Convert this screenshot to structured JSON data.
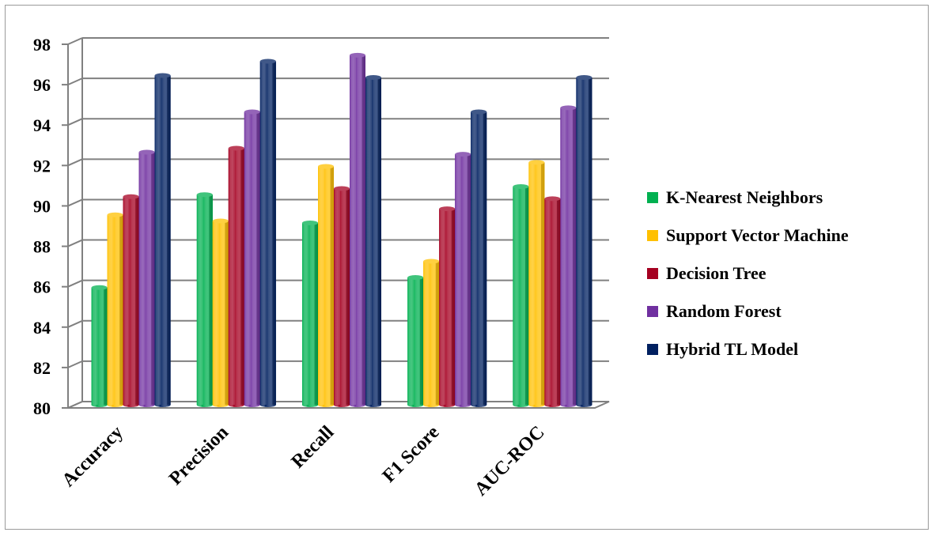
{
  "chart_data": {
    "type": "bar",
    "categories": [
      "Accuracy",
      "Precision",
      "Recall",
      "F1 Score",
      "AUC-ROC"
    ],
    "series": [
      {
        "name": "K-Nearest Neighbors",
        "values": [
          85.8,
          90.4,
          89.0,
          86.3,
          90.8
        ],
        "color": "#00b050"
      },
      {
        "name": "Support Vector Machine",
        "values": [
          89.4,
          89.1,
          91.8,
          87.1,
          92.0
        ],
        "color": "#ffc000"
      },
      {
        "name": "Decision Tree",
        "values": [
          90.3,
          92.7,
          90.7,
          89.7,
          90.2
        ],
        "color": "#a50021"
      },
      {
        "name": "Random Forest",
        "values": [
          92.5,
          94.5,
          97.3,
          92.4,
          94.7
        ],
        "color": "#7030a0"
      },
      {
        "name": "Hybrid TL Model",
        "values": [
          96.3,
          97.0,
          96.2,
          94.5,
          96.2
        ],
        "color": "#002060"
      }
    ],
    "y_ticks": [
      "80",
      "82",
      "84",
      "86",
      "88",
      "90",
      "92",
      "94",
      "96",
      "98"
    ],
    "ylim": [
      80,
      98
    ],
    "grid": true,
    "legend_position": "right",
    "style": "3d-cylinder"
  }
}
